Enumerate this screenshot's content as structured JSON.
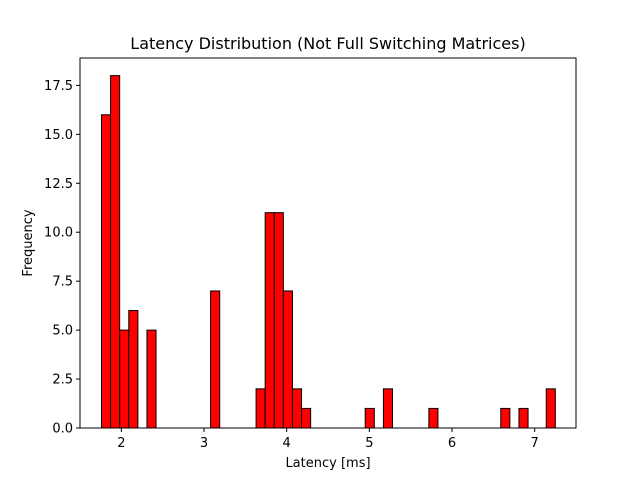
{
  "chart_data": {
    "type": "bar",
    "title": "Latency Distribution (Not Full Switching Matrices)",
    "xlabel": "Latency [ms]",
    "ylabel": "Frequency",
    "xlim": [
      1.5,
      7.5
    ],
    "ylim": [
      0,
      18.9
    ],
    "grid": false,
    "bar_color": "#ff0000",
    "edge_color": "#000000",
    "bin_width": 0.11,
    "bins": [
      {
        "x0": 1.76,
        "value": 16
      },
      {
        "x0": 1.87,
        "value": 18
      },
      {
        "x0": 1.98,
        "value": 5
      },
      {
        "x0": 2.09,
        "value": 6
      },
      {
        "x0": 2.31,
        "value": 5
      },
      {
        "x0": 3.08,
        "value": 7
      },
      {
        "x0": 3.63,
        "value": 2
      },
      {
        "x0": 3.74,
        "value": 11
      },
      {
        "x0": 3.85,
        "value": 11
      },
      {
        "x0": 3.96,
        "value": 7
      },
      {
        "x0": 4.07,
        "value": 2
      },
      {
        "x0": 4.18,
        "value": 1
      },
      {
        "x0": 4.95,
        "value": 1
      },
      {
        "x0": 5.17,
        "value": 2
      },
      {
        "x0": 5.72,
        "value": 1
      },
      {
        "x0": 6.59,
        "value": 1
      },
      {
        "x0": 6.81,
        "value": 1
      },
      {
        "x0": 7.14,
        "value": 2
      }
    ],
    "x_ticks": [
      2,
      3,
      4,
      5,
      6,
      7
    ],
    "x_tick_labels": [
      "2",
      "3",
      "4",
      "5",
      "6",
      "7"
    ],
    "y_ticks": [
      0,
      2.5,
      5,
      7.5,
      10,
      12.5,
      15,
      17.5
    ],
    "y_tick_labels": [
      "0.0",
      "2.5",
      "5.0",
      "7.5",
      "10.0",
      "12.5",
      "15.0",
      "17.5"
    ]
  }
}
